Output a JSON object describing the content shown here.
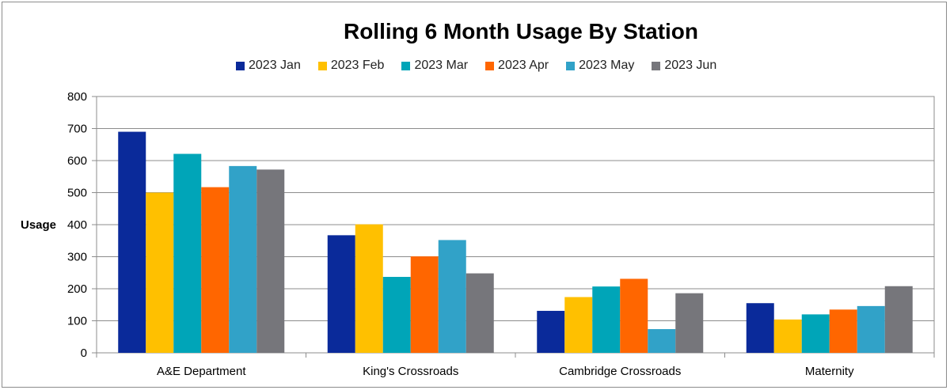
{
  "chart_data": {
    "type": "bar",
    "title": "Rolling 6 Month Usage By Station",
    "xlabel": "",
    "ylabel": "Usage",
    "ylim": [
      0,
      800
    ],
    "yticks": [
      "0",
      "100",
      "200",
      "300",
      "400",
      "500",
      "600",
      "700",
      "800"
    ],
    "grid": true,
    "legend_position": "top",
    "categories": [
      "A&E Department",
      "King's Crossroads",
      "Cambridge Crossroads",
      "Maternity"
    ],
    "series": [
      {
        "name": "2023 Jan",
        "color": "#0a2a9a",
        "values": [
          690,
          367,
          131,
          155
        ]
      },
      {
        "name": "2023 Feb",
        "color": "#ffc000",
        "values": [
          500,
          401,
          174,
          104
        ]
      },
      {
        "name": "2023 Mar",
        "color": "#00a5b8",
        "values": [
          621,
          237,
          207,
          120
        ]
      },
      {
        "name": "2023 Apr",
        "color": "#ff6600",
        "values": [
          517,
          301,
          231,
          135
        ]
      },
      {
        "name": "2023 May",
        "color": "#31a2c8",
        "values": [
          583,
          352,
          74,
          146
        ]
      },
      {
        "name": "2023 Jun",
        "color": "#76767b",
        "values": [
          572,
          248,
          186,
          208
        ]
      }
    ]
  }
}
